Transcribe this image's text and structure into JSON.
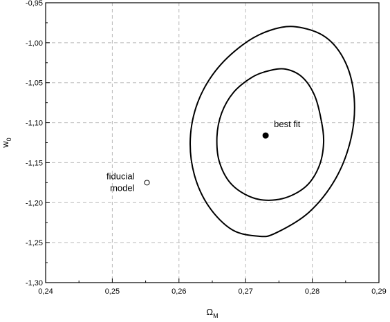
{
  "chart_data": {
    "type": "scatter",
    "title": "",
    "xlabel": {
      "main": "Ω",
      "sub": "M"
    },
    "ylabel": {
      "main": "w",
      "sub": "0"
    },
    "xlim": [
      0.24,
      0.29
    ],
    "ylim": [
      -1.3,
      -0.95
    ],
    "xticks": [
      {
        "value": 0.24,
        "label": "0,24"
      },
      {
        "value": 0.25,
        "label": "0,25"
      },
      {
        "value": 0.26,
        "label": "0,26"
      },
      {
        "value": 0.27,
        "label": "0,27"
      },
      {
        "value": 0.28,
        "label": "0,28"
      },
      {
        "value": 0.29,
        "label": "0,29"
      }
    ],
    "yticks": [
      {
        "value": -0.95,
        "label": "-0,95"
      },
      {
        "value": -1.0,
        "label": "-1,00"
      },
      {
        "value": -1.05,
        "label": "-1,05"
      },
      {
        "value": -1.1,
        "label": "-1,10"
      },
      {
        "value": -1.15,
        "label": "-1,15"
      },
      {
        "value": -1.2,
        "label": "-1,20"
      },
      {
        "value": -1.25,
        "label": "-1,25"
      },
      {
        "value": -1.3,
        "label": "-1,30"
      }
    ],
    "grid": true,
    "points": [
      {
        "label": "best fit",
        "x": 0.273,
        "y": -1.116,
        "filled": true
      },
      {
        "label_lines": [
          "fiducial",
          "model"
        ],
        "x": 0.2552,
        "y": -1.175,
        "filled": false
      }
    ],
    "contours": [
      {
        "level": "inner",
        "points": [
          [
            0.276,
            -1.033
          ],
          [
            0.2785,
            -1.043
          ],
          [
            0.2803,
            -1.065
          ],
          [
            0.2813,
            -1.095
          ],
          [
            0.2817,
            -1.125
          ],
          [
            0.281,
            -1.155
          ],
          [
            0.279,
            -1.18
          ],
          [
            0.2755,
            -1.195
          ],
          [
            0.2715,
            -1.195
          ],
          [
            0.268,
            -1.178
          ],
          [
            0.2661,
            -1.15
          ],
          [
            0.2657,
            -1.118
          ],
          [
            0.2664,
            -1.088
          ],
          [
            0.2682,
            -1.062
          ],
          [
            0.271,
            -1.043
          ],
          [
            0.2735,
            -1.035
          ]
        ]
      },
      {
        "level": "outer",
        "points": [
          [
            0.2775,
            -0.98
          ],
          [
            0.282,
            -0.993
          ],
          [
            0.285,
            -1.025
          ],
          [
            0.2863,
            -1.07
          ],
          [
            0.2858,
            -1.12
          ],
          [
            0.2835,
            -1.17
          ],
          [
            0.2795,
            -1.212
          ],
          [
            0.2745,
            -1.238
          ],
          [
            0.272,
            -1.242
          ],
          [
            0.268,
            -1.234
          ],
          [
            0.2645,
            -1.205
          ],
          [
            0.2623,
            -1.165
          ],
          [
            0.2617,
            -1.12
          ],
          [
            0.2628,
            -1.075
          ],
          [
            0.2655,
            -1.035
          ],
          [
            0.2695,
            -1.003
          ],
          [
            0.2735,
            -0.985
          ]
        ]
      }
    ]
  }
}
